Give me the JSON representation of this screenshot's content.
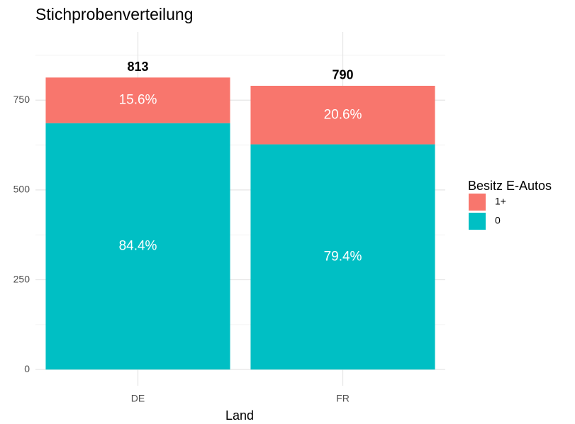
{
  "chart_data": {
    "type": "stacked_bar",
    "title": "Stichprobenverteilung",
    "x_label": "Land",
    "categories": [
      "DE",
      "FR"
    ],
    "series": [
      {
        "name": "0",
        "color": "#00bfc4",
        "values": [
          686,
          627
        ],
        "share_labels": [
          "84.4%",
          "79.4%"
        ]
      },
      {
        "name": "1+",
        "color": "#f8766d",
        "values": [
          127,
          163
        ],
        "share_labels": [
          "15.6%",
          "20.6%"
        ]
      }
    ],
    "totals": [
      813,
      790
    ],
    "legend_title": "Besitz E-Autos",
    "legend_position": "right",
    "ylim": [
      -45,
      940
    ],
    "yticks": [
      0,
      250,
      500,
      750
    ],
    "y_minor_ticks": [
      125,
      375,
      625,
      875
    ],
    "grid": true
  }
}
